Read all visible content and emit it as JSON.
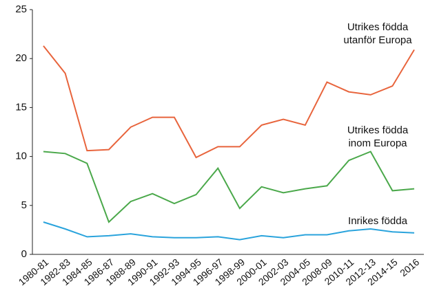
{
  "chart_data": {
    "type": "line",
    "categories": [
      "1980-81",
      "1982-83",
      "1984-85",
      "1986-87",
      "1988-89",
      "1990-91",
      "1992-93",
      "1994-95",
      "1996-97",
      "1998-99",
      "2000-01",
      "2002-03",
      "2004-05",
      "2008-09",
      "2010-11",
      "2012-13",
      "2014-15",
      "2016"
    ],
    "series": [
      {
        "name": "Utrikes födda utanför Europa",
        "color": "#e8643c",
        "values": [
          21.3,
          18.5,
          10.6,
          10.7,
          13.0,
          14.0,
          14.0,
          9.9,
          11.0,
          11.0,
          13.2,
          13.8,
          13.2,
          17.6,
          16.6,
          16.3,
          17.2,
          20.9
        ]
      },
      {
        "name": "Utrikes födda inom Europa",
        "color": "#4aa84a",
        "values": [
          10.5,
          10.3,
          9.3,
          3.3,
          5.4,
          6.2,
          5.2,
          6.1,
          8.8,
          4.7,
          6.9,
          6.3,
          6.7,
          7.0,
          9.6,
          10.5,
          6.5,
          6.7
        ]
      },
      {
        "name": "Inrikes födda",
        "color": "#29a3dc",
        "values": [
          3.3,
          2.6,
          1.8,
          1.9,
          2.1,
          1.8,
          1.7,
          1.7,
          1.8,
          1.5,
          1.9,
          1.7,
          2.0,
          2.0,
          2.4,
          2.6,
          2.3,
          2.2
        ]
      }
    ],
    "ylim": [
      0,
      25
    ],
    "yticks": [
      0,
      5,
      10,
      15,
      20,
      25
    ],
    "grid": false
  }
}
